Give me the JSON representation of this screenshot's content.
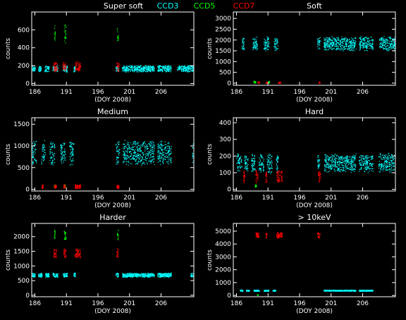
{
  "header": {
    "panel_title": "Super soft",
    "legend": [
      {
        "label": "CCD3",
        "color": "#00ffff"
      },
      {
        "label": "CCD5",
        "color": "#00ff00"
      },
      {
        "label": "CCD7",
        "color": "#ff0000"
      }
    ]
  },
  "colors": {
    "background": "#000000",
    "axes": "#ffffff",
    "text": "#ffffff"
  },
  "chart_data": [
    {
      "type": "scatter",
      "title": "Super soft",
      "xlabel": "(DOY 2008)",
      "ylabel": "counts",
      "xlim": [
        185.5,
        211.2
      ],
      "ylim": [
        -20,
        800
      ],
      "xticks": [
        186,
        191,
        196,
        201,
        206
      ],
      "xtick_labels": [
        "186",
        "191",
        "196",
        "201",
        "206"
      ],
      "yticks": [
        0,
        200,
        400,
        600
      ],
      "series": [
        {
          "name": "CCD3",
          "color": "#00ffff",
          "level": 170,
          "spread": 40,
          "intervals": [
            [
              185.5,
              186.0
            ],
            [
              186.5,
              187.0
            ],
            [
              187.5,
              188.2
            ],
            [
              188.8,
              189.6
            ],
            [
              190.4,
              191.1
            ],
            [
              192.1,
              192.4
            ],
            [
              198.8,
              199.3
            ],
            [
              199.8,
              204.9
            ],
            [
              205.4,
              207.6
            ],
            [
              208.5,
              211.2
            ]
          ]
        },
        {
          "name": "CCD5",
          "color": "#00ff00",
          "level": 560,
          "spread": 120,
          "intervals": [
            [
              189.0,
              189.2
            ],
            [
              190.6,
              190.9
            ],
            [
              199.0,
              199.2
            ]
          ]
        },
        {
          "name": "CCD7",
          "color": "#ff0000",
          "level": 190,
          "spread": 60,
          "intervals": [
            [
              188.9,
              189.6
            ],
            [
              190.4,
              190.9
            ],
            [
              192.3,
              193.2
            ],
            [
              198.9,
              199.3
            ]
          ]
        }
      ]
    },
    {
      "type": "scatter",
      "title": "Soft",
      "xlabel": "(DOY 2008)",
      "ylabel": "counts",
      "xlim": [
        185.5,
        211.2
      ],
      "ylim": [
        -100,
        3300
      ],
      "xticks": [
        186,
        191,
        196,
        201,
        206
      ],
      "xtick_labels": [
        "186",
        "191",
        "196",
        "201",
        "206"
      ],
      "yticks": [
        0,
        500,
        1000,
        1500,
        2000,
        2500,
        3000
      ],
      "series": [
        {
          "name": "CCD3",
          "color": "#00ffff",
          "level": 1850,
          "spread": 350,
          "intervals": [
            [
              186.8,
              187.2
            ],
            [
              188.5,
              189.3
            ],
            [
              190.3,
              191.1
            ],
            [
              191.9,
              192.5
            ],
            [
              198.8,
              199.2
            ],
            [
              199.8,
              204.9
            ],
            [
              205.4,
              207.6
            ],
            [
              208.6,
              211.2
            ]
          ]
        },
        {
          "name": "CCD5",
          "color": "#00ff00",
          "level": 60,
          "spread": 60,
          "intervals": [
            [
              188.7,
              189.0
            ],
            [
              191.0,
              191.2
            ]
          ]
        },
        {
          "name": "CCD7",
          "color": "#ff0000",
          "level": 40,
          "spread": 40,
          "intervals": [
            [
              189.3,
              189.6
            ],
            [
              190.6,
              190.9
            ],
            [
              192.6,
              193.0
            ],
            [
              199.0,
              199.2
            ]
          ]
        }
      ]
    },
    {
      "type": "scatter",
      "title": "Medium",
      "xlabel": "(DOY 2008)",
      "ylabel": "counts",
      "xlim": [
        185.5,
        211.2
      ],
      "ylim": [
        -40,
        1650
      ],
      "xticks": [
        186,
        191,
        196,
        201,
        206
      ],
      "xtick_labels": [
        "186",
        "191",
        "196",
        "201",
        "206"
      ],
      "yticks": [
        0,
        500,
        1000,
        1500
      ],
      "series": [
        {
          "name": "CCD3",
          "color": "#00ffff",
          "level": 850,
          "spread": 300,
          "intervals": [
            [
              185.5,
              186.2
            ],
            [
              187.0,
              187.6
            ],
            [
              188.3,
              189.1
            ],
            [
              190.0,
              190.8
            ],
            [
              191.4,
              192.2
            ],
            [
              198.8,
              199.4
            ],
            [
              199.9,
              204.9
            ],
            [
              205.4,
              207.6
            ],
            [
              210.9,
              211.2
            ]
          ]
        },
        {
          "name": "CCD5",
          "color": "#00ff00",
          "level": 80,
          "spread": 40,
          "intervals": [
            [
              189.0,
              189.2
            ],
            [
              190.6,
              190.8
            ]
          ]
        },
        {
          "name": "CCD7",
          "color": "#ff0000",
          "level": 70,
          "spread": 50,
          "intervals": [
            [
              187.0,
              187.3
            ],
            [
              189.0,
              189.4
            ],
            [
              190.5,
              190.8
            ],
            [
              192.3,
              193.2
            ],
            [
              198.9,
              199.3
            ]
          ]
        }
      ]
    },
    {
      "type": "scatter",
      "title": "Hard",
      "xlabel": "(DOY 2008)",
      "ylabel": "counts",
      "xlim": [
        185.5,
        211.2
      ],
      "ylim": [
        -10,
        430
      ],
      "xticks": [
        186,
        191,
        196,
        201,
        206
      ],
      "xtick_labels": [
        "186",
        "191",
        "196",
        "201",
        "206"
      ],
      "yticks": [
        0,
        100,
        200,
        300,
        400
      ],
      "series": [
        {
          "name": "CCD3",
          "color": "#00ffff",
          "level": 160,
          "spread": 60,
          "intervals": [
            [
              186.0,
              186.8
            ],
            [
              187.2,
              187.8
            ],
            [
              188.3,
              189.0
            ],
            [
              189.5,
              190.3
            ],
            [
              190.8,
              191.6
            ],
            [
              192.2,
              192.6
            ],
            [
              198.8,
              199.2
            ],
            [
              199.9,
              204.9
            ],
            [
              205.4,
              207.6
            ],
            [
              208.5,
              211.0
            ]
          ]
        },
        {
          "name": "CCD5",
          "color": "#00ff00",
          "level": 20,
          "spread": 15,
          "intervals": [
            [
              188.9,
              189.1
            ]
          ]
        },
        {
          "name": "CCD7",
          "color": "#ff0000",
          "level": 80,
          "spread": 40,
          "intervals": [
            [
              187.0,
              187.3
            ],
            [
              189.0,
              189.4
            ],
            [
              190.5,
              190.8
            ],
            [
              192.3,
              193.2
            ],
            [
              198.9,
              199.3
            ]
          ]
        }
      ]
    },
    {
      "type": "scatter",
      "title": "Harder",
      "xlabel": "(DOY 2008)",
      "ylabel": "counts",
      "xlim": [
        185.5,
        211.2
      ],
      "ylim": [
        -50,
        2450
      ],
      "xticks": [
        186,
        191,
        196,
        201,
        206
      ],
      "xtick_labels": [
        "186",
        "191",
        "196",
        "201",
        "206"
      ],
      "yticks": [
        0,
        500,
        1000,
        1500,
        2000
      ],
      "series": [
        {
          "name": "CCD3",
          "color": "#00ffff",
          "level": 700,
          "spread": 80,
          "intervals": [
            [
              185.5,
              186.0
            ],
            [
              186.5,
              187.1
            ],
            [
              187.6,
              188.2
            ],
            [
              188.8,
              189.6
            ],
            [
              190.4,
              191.1
            ],
            [
              192.1,
              192.4
            ],
            [
              198.8,
              199.2
            ],
            [
              199.8,
              204.9
            ],
            [
              205.4,
              207.6
            ],
            [
              210.6,
              211.2
            ]
          ]
        },
        {
          "name": "CCD5",
          "color": "#00ff00",
          "level": 2050,
          "spread": 200,
          "intervals": [
            [
              189.0,
              189.2
            ],
            [
              190.6,
              190.9
            ],
            [
              199.0,
              199.2
            ]
          ]
        },
        {
          "name": "CCD7",
          "color": "#ff0000",
          "level": 1450,
          "spread": 180,
          "intervals": [
            [
              188.9,
              189.4
            ],
            [
              190.5,
              190.9
            ],
            [
              192.3,
              193.2
            ],
            [
              198.9,
              199.2
            ]
          ]
        }
      ]
    },
    {
      "type": "scatter",
      "title": "> 10keV",
      "xlabel": "(DOY 2008)",
      "ylabel": "counts",
      "xlim": [
        185.5,
        211.2
      ],
      "ylim": [
        -100,
        5600
      ],
      "xticks": [
        186,
        191,
        196,
        201,
        206
      ],
      "xtick_labels": [
        "186",
        "191",
        "196",
        "201",
        "206"
      ],
      "yticks": [
        0,
        1000,
        2000,
        3000,
        4000,
        5000
      ],
      "series": [
        {
          "name": "CCD3",
          "color": "#00ffff",
          "level": 400,
          "spread": 60,
          "intervals": [
            [
              186.5,
              187.0
            ],
            [
              187.5,
              188.0
            ],
            [
              188.7,
              189.6
            ],
            [
              190.3,
              191.1
            ],
            [
              191.7,
              192.2
            ],
            [
              199.8,
              204.9
            ],
            [
              205.4,
              207.6
            ]
          ]
        },
        {
          "name": "CCD5",
          "color": "#00ff00",
          "level": 60,
          "spread": 40,
          "intervals": [
            [
              189.2,
              189.4
            ]
          ]
        },
        {
          "name": "CCD7",
          "color": "#ff0000",
          "level": 4700,
          "spread": 250,
          "intervals": [
            [
              189.0,
              189.5
            ],
            [
              190.6,
              190.8
            ],
            [
              192.3,
              193.2
            ],
            [
              198.8,
              199.2
            ]
          ]
        }
      ]
    }
  ]
}
